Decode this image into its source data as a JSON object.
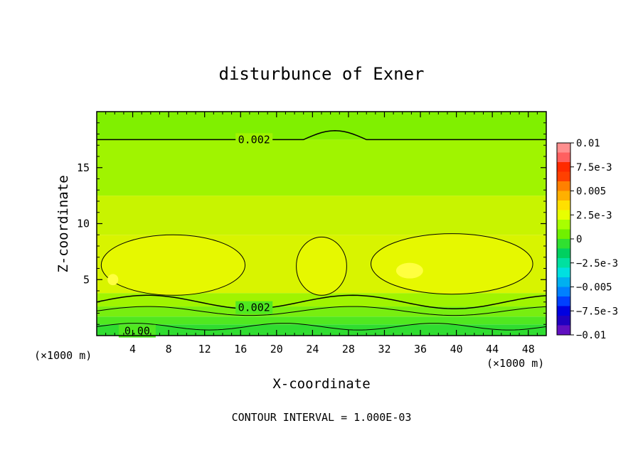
{
  "colors": {
    "background": "#ffffff",
    "axis": "#000000",
    "contour_line": "#000000"
  },
  "chart_data": {
    "type": "heatmap",
    "title": "disturbunce of Exner",
    "xlabel": "X-coordinate",
    "ylabel": "Z-coordinate",
    "x_unit_left": "(×1000 m)",
    "x_unit_right": "(×1000 m)",
    "xlim": [
      0,
      50
    ],
    "ylim": [
      0,
      20
    ],
    "x_ticks": [
      "4",
      "8",
      "12",
      "16",
      "20",
      "24",
      "28",
      "32",
      "36",
      "40",
      "44",
      "48"
    ],
    "y_ticks": [
      "5",
      "10",
      "15"
    ],
    "note": "CONTOUR INTERVAL = 1.000E-03",
    "contour_interval": 0.001,
    "contour_labels": [
      "0.002",
      "0.002",
      "0.00"
    ],
    "colorbar": {
      "labels": [
        "0.01",
        "7.5e-3",
        "0.005",
        "2.5e-3",
        "0",
        "−2.5e-3",
        "−0.005",
        "−7.5e-3",
        "−0.01"
      ],
      "levels": [
        0.01,
        0.0075,
        0.005,
        0.0025,
        0,
        -0.0025,
        -0.005,
        -0.0075,
        -0.01
      ],
      "segments": [
        "#ff8f8f",
        "#ff6060",
        "#ff2a00",
        "#ff4000",
        "#ff8000",
        "#ffb000",
        "#ffe000",
        "#e8ff00",
        "#a8ff00",
        "#70f000",
        "#30e030",
        "#00d060",
        "#00e0a0",
        "#00e0e0",
        "#00b0f0",
        "#0080ff",
        "#0040ff",
        "#0000e0",
        "#2000c0",
        "#6010c0"
      ]
    },
    "bands": [
      {
        "zmin": 0,
        "zmax": 1.0,
        "value": 0.0005,
        "color": "#30dd30"
      },
      {
        "zmin": 1.0,
        "zmax": 1.7,
        "value": 0.001,
        "color": "#50e820"
      },
      {
        "zmin": 1.7,
        "zmax": 2.6,
        "value": 0.0015,
        "color": "#78ee10"
      },
      {
        "zmin": 2.6,
        "zmax": 3.8,
        "value": 0.002,
        "color": "#a0f400"
      },
      {
        "zmin": 3.8,
        "zmax": 9.0,
        "value": 0.0035,
        "color": "#d8f400"
      },
      {
        "zmin": 9.0,
        "zmax": 12.5,
        "value": 0.003,
        "color": "#c8f400"
      },
      {
        "zmin": 12.5,
        "zmax": 17.5,
        "value": 0.0025,
        "color": "#a0f400"
      },
      {
        "zmin": 17.5,
        "zmax": 20,
        "value": 0.0015,
        "color": "#80f000"
      }
    ],
    "highlight_color": "#ffff40"
  }
}
